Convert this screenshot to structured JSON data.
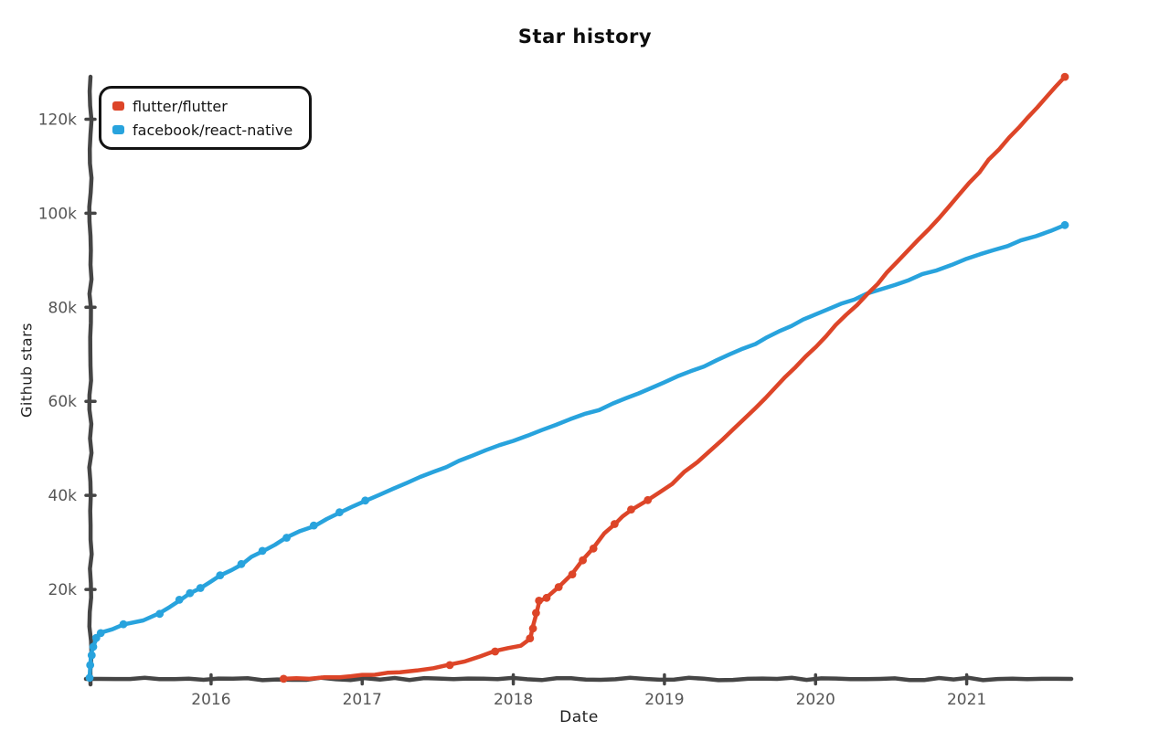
{
  "header": {
    "title": "Star history"
  },
  "legend": {
    "items": [
      {
        "label": "flutter/flutter",
        "color": "#dd4528"
      },
      {
        "label": "facebook/react-native",
        "color": "#28a3dd"
      }
    ]
  },
  "chart_data": {
    "type": "line",
    "title": "Star history",
    "xlabel": "Date",
    "ylabel": "Github stars",
    "x_unit": "decimal_year",
    "xlim": [
      2015.19,
      2021.68
    ],
    "ylim": [
      0,
      130000
    ],
    "grid": false,
    "legend_position": "top-left",
    "style": "hand-drawn",
    "axis_color": "#454545",
    "tick_label_color": "#565656",
    "x_ticks": [
      {
        "value": 2016,
        "label": "2016"
      },
      {
        "value": 2017,
        "label": "2017"
      },
      {
        "value": 2018,
        "label": "2018"
      },
      {
        "value": 2019,
        "label": "2019"
      },
      {
        "value": 2020,
        "label": "2020"
      },
      {
        "value": 2021,
        "label": "2021"
      }
    ],
    "y_ticks": [
      {
        "value": 20000,
        "label": "20k"
      },
      {
        "value": 40000,
        "label": "40k"
      },
      {
        "value": 60000,
        "label": "60k"
      },
      {
        "value": 80000,
        "label": "80k"
      },
      {
        "value": 100000,
        "label": "100k"
      },
      {
        "value": 120000,
        "label": "120k"
      }
    ],
    "series": [
      {
        "name": "facebook/react-native",
        "color": "#28a3dd",
        "points": [
          [
            2015.196,
            1200,
            1
          ],
          [
            2015.2,
            3900,
            1
          ],
          [
            2015.21,
            6000,
            1
          ],
          [
            2015.22,
            7800,
            1
          ],
          [
            2015.24,
            9700,
            1
          ],
          [
            2015.27,
            10700,
            1
          ],
          [
            2015.42,
            12600,
            1
          ],
          [
            2015.55,
            13500,
            0
          ],
          [
            2015.66,
            14800,
            1
          ],
          [
            2015.79,
            17800,
            1
          ],
          [
            2015.86,
            19200,
            1
          ],
          [
            2015.93,
            20300,
            1
          ],
          [
            2016.06,
            23000,
            1
          ],
          [
            2016.2,
            25400,
            1
          ],
          [
            2016.34,
            28200,
            1
          ],
          [
            2016.5,
            31000,
            1
          ],
          [
            2016.68,
            33600,
            1
          ],
          [
            2016.85,
            36400,
            1
          ],
          [
            2017.02,
            38900,
            1
          ],
          [
            2017.3,
            42600,
            0
          ],
          [
            2017.64,
            47300,
            0
          ],
          [
            2018.0,
            51600,
            0
          ],
          [
            2018.66,
            59400,
            0
          ],
          [
            2019.0,
            64000,
            0
          ],
          [
            2019.52,
            71100,
            0
          ],
          [
            2020.0,
            78500,
            0
          ],
          [
            2020.34,
            82800,
            0
          ],
          [
            2020.8,
            88000,
            0
          ],
          [
            2021.0,
            90200,
            0
          ],
          [
            2021.36,
            94100,
            0
          ],
          [
            2021.65,
            97500,
            1
          ]
        ]
      },
      {
        "name": "flutter/flutter",
        "color": "#dd4528",
        "points": [
          [
            2016.48,
            1000,
            1
          ],
          [
            2016.65,
            1000,
            0
          ],
          [
            2016.85,
            1300,
            0
          ],
          [
            2017.0,
            1700,
            0
          ],
          [
            2017.25,
            2400,
            0
          ],
          [
            2017.58,
            3900,
            1
          ],
          [
            2017.88,
            6800,
            1
          ],
          [
            2018.05,
            8000,
            0
          ],
          [
            2018.11,
            9600,
            1
          ],
          [
            2018.13,
            11700,
            1
          ],
          [
            2018.15,
            15000,
            1
          ],
          [
            2018.17,
            17600,
            1
          ],
          [
            2018.22,
            18200,
            1
          ],
          [
            2018.3,
            20500,
            1
          ],
          [
            2018.39,
            23200,
            1
          ],
          [
            2018.46,
            26200,
            1
          ],
          [
            2018.53,
            28700,
            1
          ],
          [
            2018.6,
            32000,
            0
          ],
          [
            2018.67,
            33900,
            1
          ],
          [
            2018.78,
            37000,
            1
          ],
          [
            2018.89,
            39000,
            1
          ],
          [
            2019.05,
            42500,
            0
          ],
          [
            2019.3,
            49500,
            0
          ],
          [
            2019.6,
            58600,
            0
          ],
          [
            2020.0,
            71700,
            0
          ],
          [
            2020.34,
            82800,
            0
          ],
          [
            2020.75,
            96500,
            0
          ],
          [
            2021.28,
            116200,
            0
          ],
          [
            2021.65,
            129000,
            1
          ]
        ]
      }
    ]
  }
}
